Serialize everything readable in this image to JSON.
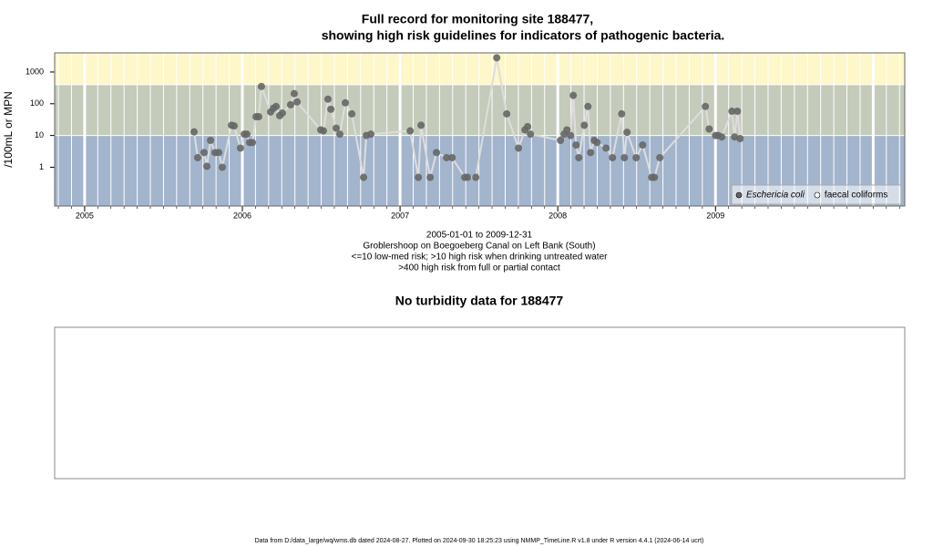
{
  "chart_data": [
    {
      "type": "scatter",
      "title": "Full record for monitoring site 188477,",
      "subtitle": "showing high risk guidelines for indicators of pathogenic bacteria.",
      "y_label": "/100mL or MPN",
      "notes": [
        "2005-01-01 to 2009-12-31",
        "Groblershoop on Boegoeberg Canal on Left Bank (South)",
        "<=10 low-med risk; >10 high risk when drinking untreated water",
        ">400 high risk from full or partial contact"
      ],
      "log_y": true,
      "xlim": [
        2004.81,
        2010.2
      ],
      "xticks": [
        2005,
        2006,
        2007,
        2008,
        2009
      ],
      "ylim": [
        0.06,
        4000
      ],
      "yticks": [
        1,
        10,
        100,
        1000
      ],
      "guidelines": [
        10,
        400
      ],
      "band_colors": [
        "#a3b4cd",
        "#c4cbbb",
        "#fdf7c9"
      ],
      "legend": "bottom-right",
      "series": [
        {
          "name": "Eschericia coli",
          "color": "#666666",
          "x": [
            2005.694,
            2005.717,
            2005.757,
            2005.775,
            2005.798,
            2005.827,
            2005.85,
            2005.873,
            2005.931,
            2005.948,
            2005.988,
            2006.012,
            2006.029,
            2006.046,
            2006.064,
            2006.087,
            2006.104,
            2006.121,
            2006.179,
            2006.197,
            2006.214,
            2006.237,
            2006.254,
            2006.306,
            2006.329,
            2006.347,
            2006.497,
            2006.514,
            2006.543,
            2006.561,
            2006.595,
            2006.618,
            2006.653,
            2006.694,
            2006.769,
            2006.786,
            2006.815,
            2007.064,
            2007.116,
            2007.133,
            2007.191,
            2007.231,
            2007.295,
            2007.33,
            2007.41,
            2007.428,
            2007.48,
            2007.613,
            2007.676,
            2007.751,
            2007.792,
            2007.809,
            2007.827,
            2008.017,
            2008.04,
            2008.058,
            2008.081,
            2008.098,
            2008.116,
            2008.133,
            2008.168,
            2008.191,
            2008.208,
            2008.231,
            2008.249,
            2008.306,
            2008.347,
            2008.405,
            2008.422,
            2008.439,
            2008.497,
            2008.538,
            2008.595,
            2008.613,
            2008.647,
            2008.936,
            2008.96,
            2009.0,
            2009.017,
            2009.04,
            2009.104,
            2009.121,
            2009.139,
            2009.156
          ],
          "values": [
            13,
            2,
            2.9,
            1.07,
            7,
            2.9,
            2.9,
            1,
            21,
            20,
            4,
            11,
            11,
            6,
            6,
            39,
            39,
            350,
            55,
            72,
            82,
            42,
            51,
            93,
            208,
            114,
            15,
            14,
            140,
            67,
            17,
            11,
            107,
            48,
            0.48,
            10,
            11,
            14,
            0.48,
            21,
            0.48,
            2.9,
            2,
            2,
            0.48,
            0.48,
            0.48,
            2800,
            48,
            4,
            15,
            19,
            11,
            7,
            11,
            15,
            10,
            183,
            5,
            2,
            21,
            82,
            2.9,
            7,
            6,
            4,
            2,
            48,
            2,
            12.6,
            2,
            5,
            0.48,
            0.48,
            2,
            82,
            16,
            10,
            10,
            9,
            58,
            9,
            58,
            8
          ]
        },
        {
          "name": "faecal coliforms",
          "color": "#ffffff",
          "x": [],
          "values": []
        }
      ]
    },
    {
      "type": "blank",
      "title": "No turbidity data for 188477"
    }
  ],
  "footer": "Data from D:/data_large/wq/wms.db dated 2024-08-27. Plotted on 2024-09-30 18:25:23 using NMMP_TimeLine.R v1.8 under R version 4.4.1 (2024-06-14 ucrt)"
}
